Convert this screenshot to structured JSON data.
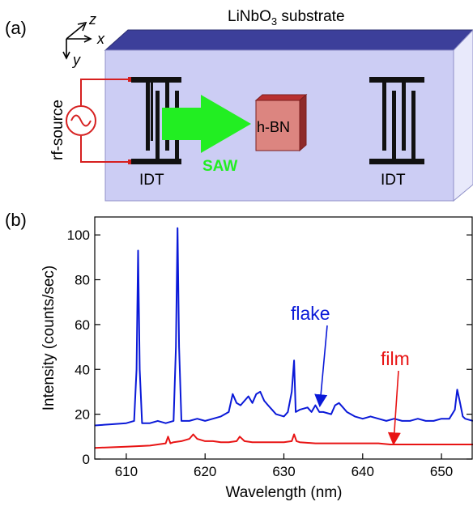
{
  "panel_a": {
    "label": "(a)",
    "substrate_label": "LiNbO",
    "substrate_sub": "3",
    "substrate_suffix": " substrate",
    "axis_z": "z",
    "axis_x": "x",
    "axis_y": "y",
    "rf_source": "rf-source",
    "idt_left": "IDT",
    "idt_right": "IDT",
    "saw": "SAW",
    "hbn": "h-BN",
    "colors": {
      "substrate_front": "#cccdf4",
      "substrate_top": "#3c3f9a",
      "substrate_side": "#e8e9fb",
      "saw_arrow": "#22ee22",
      "saw_text": "#22ee22",
      "hbn_front": "#dc8580",
      "hbn_top": "#b83030",
      "hbn_side": "#8e2a2a",
      "wire": "#d62020"
    }
  },
  "panel_b": {
    "label": "(b)",
    "annotation_flake": "flake",
    "annotation_film": "film",
    "colors": {
      "flake": "#0a19d8",
      "film": "#e81414"
    }
  },
  "chart_data": {
    "type": "line",
    "xlabel": "Wavelength (nm)",
    "ylabel": "Intensity (counts/sec)",
    "xlim": [
      606,
      654
    ],
    "ylim": [
      0,
      108
    ],
    "xticks": [
      610,
      620,
      630,
      640,
      650
    ],
    "yticks": [
      0,
      20,
      40,
      60,
      80,
      100
    ],
    "grid": false,
    "series": [
      {
        "name": "flake",
        "color": "#0a19d8",
        "x": [
          606,
          608,
          610,
          611,
          611.3,
          611.5,
          611.7,
          612,
          613,
          614,
          615,
          616,
          616.3,
          616.5,
          616.7,
          617,
          618,
          619,
          620,
          621,
          622,
          623,
          623.5,
          624,
          624.5,
          625,
          625.5,
          626,
          626.5,
          627,
          627.5,
          628,
          628.5,
          629,
          630,
          630.5,
          631,
          631.3,
          631.5,
          632,
          633,
          633.5,
          634,
          634.5,
          635,
          636,
          636.5,
          637,
          637.5,
          638,
          639,
          640,
          641,
          642,
          643,
          644,
          645,
          646,
          647,
          648,
          649,
          650,
          651,
          651.7,
          652,
          652.3,
          652.7,
          653,
          654
        ],
        "y": [
          15,
          15.5,
          16,
          17,
          40,
          93,
          40,
          16,
          16,
          17,
          16,
          17,
          50,
          103,
          50,
          17,
          17,
          18,
          17,
          18,
          19,
          21,
          29,
          25,
          24,
          26,
          28,
          25,
          29,
          30,
          26,
          24,
          22,
          20,
          19,
          21,
          30,
          44,
          21,
          22,
          23,
          21,
          24,
          21,
          21,
          20,
          24,
          25,
          23,
          21,
          19,
          18,
          19,
          18,
          17,
          18,
          17,
          17,
          18,
          17,
          17,
          18,
          18,
          22,
          31,
          26,
          19,
          18,
          17
        ]
      },
      {
        "name": "film",
        "color": "#e81414",
        "x": [
          606,
          610,
          613,
          614,
          615,
          615.3,
          615.6,
          616,
          617,
          618,
          618.5,
          619,
          620,
          621,
          622,
          623,
          624,
          624.4,
          625,
          626,
          628,
          630,
          631,
          631.3,
          631.6,
          632,
          634,
          636,
          638,
          640,
          642,
          643.5,
          645,
          648,
          650,
          652,
          654
        ],
        "y": [
          5,
          5.5,
          6,
          6.5,
          7,
          10,
          7,
          7.5,
          8,
          9,
          11,
          9,
          8,
          8,
          7.5,
          7.5,
          8,
          10,
          8,
          7.5,
          7.5,
          7.5,
          8,
          11,
          8,
          7.5,
          7,
          7,
          7,
          7,
          7,
          6.5,
          6.5,
          6.5,
          6.5,
          6.5,
          6.5
        ]
      }
    ]
  }
}
